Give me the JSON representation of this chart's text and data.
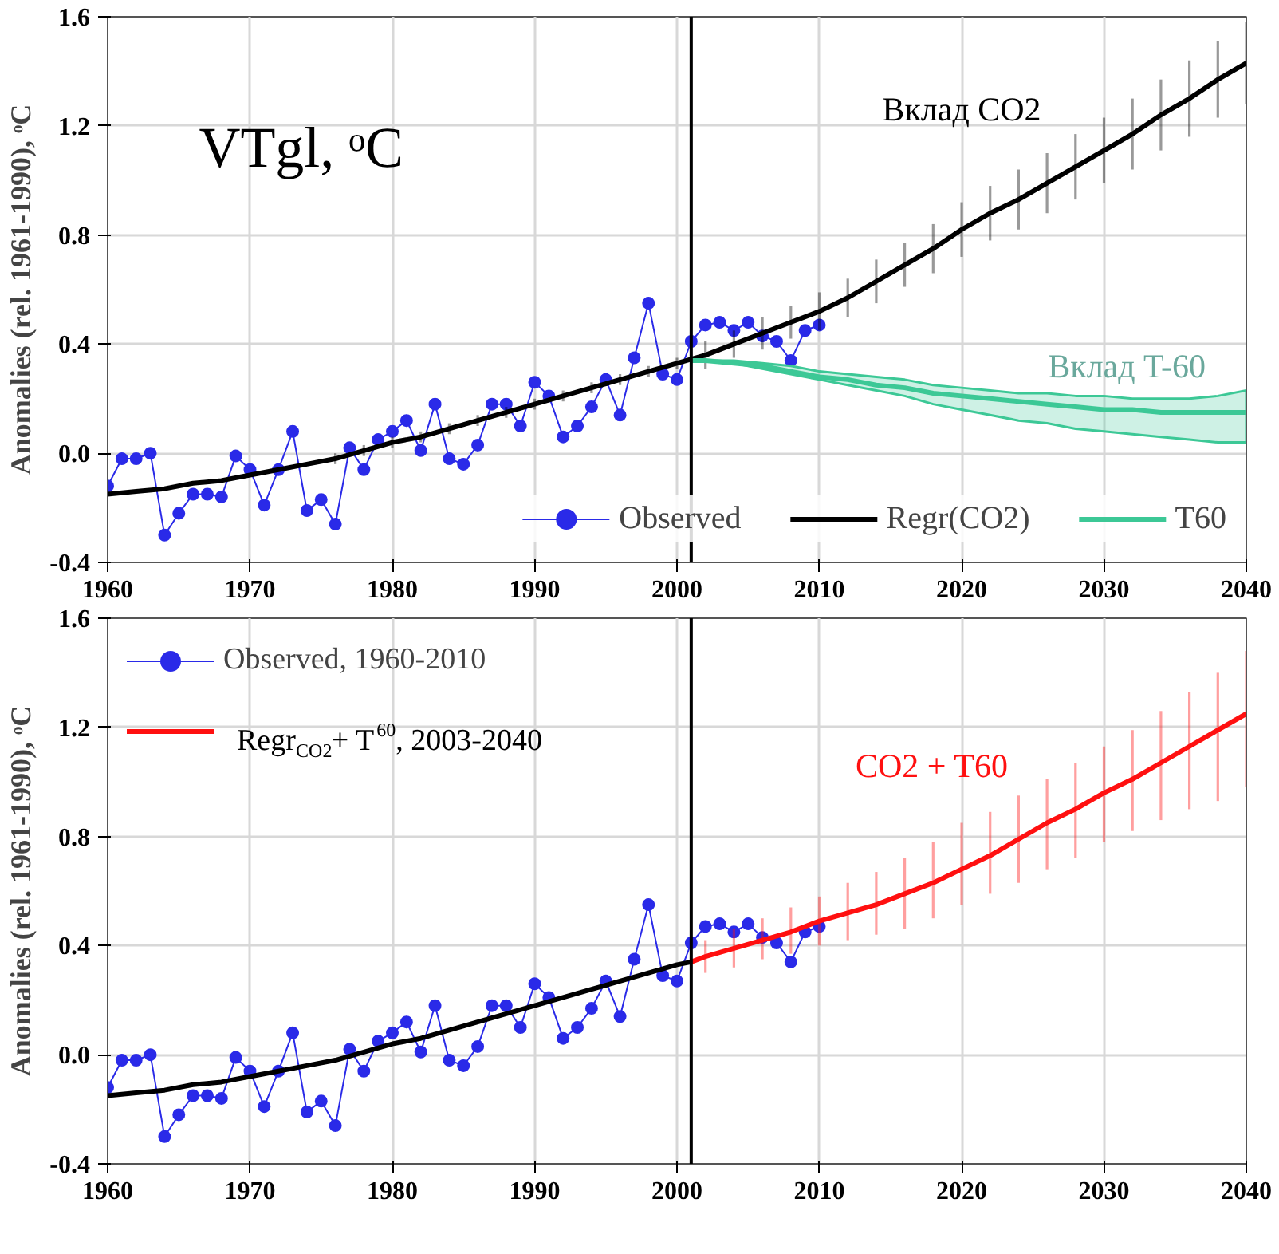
{
  "chart_data": [
    {
      "type": "line",
      "xlim": [
        1960,
        2040
      ],
      "ylim": [
        -0.4,
        1.6
      ],
      "xticks": [
        1960,
        1970,
        1980,
        1990,
        2000,
        2010,
        2020,
        2030,
        2040
      ],
      "yticks": [
        -0.4,
        {
          "value": 0,
          "label": "0.0"
        },
        0.4,
        0.8,
        1.2,
        1.6
      ],
      "ylabel": "Anomalies (rel. 1961-1990), ᵒC",
      "grid": true,
      "legend": "bottom",
      "series": [
        {
          "name": "Observed",
          "color": "#2a2ae8",
          "marker": "circle",
          "x": [
            1960,
            1961,
            1962,
            1963,
            1964,
            1965,
            1966,
            1967,
            1968,
            1969,
            1970,
            1971,
            1972,
            1973,
            1974,
            1975,
            1976,
            1977,
            1978,
            1979,
            1980,
            1981,
            1982,
            1983,
            1984,
            1985,
            1986,
            1987,
            1988,
            1989,
            1990,
            1991,
            1992,
            1993,
            1994,
            1995,
            1996,
            1997,
            1998,
            1999,
            2000,
            2001,
            2002,
            2003,
            2004,
            2005,
            2006,
            2007,
            2008,
            2009,
            2010
          ],
          "values": [
            -0.12,
            -0.02,
            -0.02,
            0.0,
            -0.3,
            -0.22,
            -0.15,
            -0.15,
            -0.16,
            -0.01,
            -0.06,
            -0.19,
            -0.06,
            0.08,
            -0.21,
            -0.17,
            -0.26,
            0.02,
            -0.06,
            0.05,
            0.08,
            0.12,
            0.01,
            0.18,
            -0.02,
            -0.04,
            0.03,
            0.18,
            0.18,
            0.1,
            0.26,
            0.21,
            0.06,
            0.1,
            0.17,
            0.27,
            0.14,
            0.35,
            0.55,
            0.29,
            0.27,
            0.41,
            0.47,
            0.48,
            0.45,
            0.48,
            0.43,
            0.41,
            0.34,
            0.45,
            0.47
          ]
        },
        {
          "name": "Regr(CO2)",
          "color": "#000000",
          "x": [
            1960,
            1962,
            1964,
            1966,
            1968,
            1970,
            1972,
            1974,
            1976,
            1978,
            1980,
            1982,
            1984,
            1986,
            1988,
            1990,
            1992,
            1994,
            1996,
            1998,
            2000,
            2002,
            2004,
            2006,
            2008,
            2010,
            2012,
            2014,
            2016,
            2018,
            2020,
            2022,
            2024,
            2026,
            2028,
            2030,
            2032,
            2034,
            2036,
            2038,
            2040
          ],
          "values": [
            -0.15,
            -0.14,
            -0.13,
            -0.11,
            -0.1,
            -0.08,
            -0.06,
            -0.04,
            -0.02,
            0.01,
            0.04,
            0.06,
            0.09,
            0.12,
            0.15,
            0.18,
            0.21,
            0.24,
            0.27,
            0.3,
            0.33,
            0.36,
            0.4,
            0.44,
            0.48,
            0.52,
            0.57,
            0.63,
            0.69,
            0.75,
            0.82,
            0.88,
            0.93,
            0.99,
            1.05,
            1.11,
            1.17,
            1.24,
            1.3,
            1.37,
            1.43
          ],
          "errors": [
            null,
            null,
            null,
            null,
            null,
            null,
            null,
            null,
            [
              -0.04,
              0.0
            ],
            [
              -0.01,
              0.03
            ],
            [
              0.02,
              0.06
            ],
            [
              0.04,
              0.08
            ],
            [
              0.07,
              0.11
            ],
            [
              0.1,
              0.14
            ],
            [
              0.13,
              0.17
            ],
            [
              0.16,
              0.2
            ],
            [
              0.19,
              0.23
            ],
            [
              0.22,
              0.26
            ],
            [
              0.25,
              0.29
            ],
            [
              0.28,
              0.32
            ],
            [
              0.31,
              0.35
            ],
            [
              0.31,
              0.41
            ],
            [
              0.35,
              0.45
            ],
            [
              0.38,
              0.5
            ],
            [
              0.42,
              0.54
            ],
            [
              0.45,
              0.59
            ],
            [
              0.5,
              0.64
            ],
            [
              0.55,
              0.71
            ],
            [
              0.61,
              0.77
            ],
            [
              0.66,
              0.84
            ],
            [
              0.72,
              0.92
            ],
            [
              0.78,
              0.98
            ],
            [
              0.82,
              1.04
            ],
            [
              0.88,
              1.1
            ],
            [
              0.93,
              1.17
            ],
            [
              0.99,
              1.23
            ],
            [
              1.04,
              1.3
            ],
            [
              1.11,
              1.37
            ],
            [
              1.16,
              1.44
            ],
            [
              1.23,
              1.51
            ],
            [
              1.28,
              1.58
            ]
          ]
        },
        {
          "name": "T60",
          "color": "#3cc896",
          "x": [
            2001,
            2002,
            2004,
            2006,
            2008,
            2010,
            2012,
            2014,
            2016,
            2018,
            2020,
            2022,
            2024,
            2026,
            2028,
            2030,
            2032,
            2034,
            2036,
            2038,
            2040
          ],
          "values": [
            0.34,
            0.34,
            0.33,
            0.32,
            0.3,
            0.28,
            0.27,
            0.25,
            0.24,
            0.22,
            0.21,
            0.2,
            0.19,
            0.18,
            0.17,
            0.16,
            0.16,
            0.15,
            0.15,
            0.15,
            0.15
          ],
          "lower": [
            0.34,
            0.34,
            0.33,
            0.31,
            0.29,
            0.27,
            0.25,
            0.23,
            0.21,
            0.18,
            0.16,
            0.14,
            0.12,
            0.11,
            0.09,
            0.08,
            0.07,
            0.06,
            0.05,
            0.04,
            0.04
          ],
          "upper": [
            0.34,
            0.34,
            0.34,
            0.33,
            0.32,
            0.3,
            0.29,
            0.28,
            0.27,
            0.25,
            0.24,
            0.23,
            0.22,
            0.22,
            0.21,
            0.21,
            0.2,
            0.2,
            0.2,
            0.21,
            0.23
          ]
        }
      ],
      "ref_lines": [
        {
          "axis": "x",
          "value": 2001
        }
      ],
      "annotations": [
        "VTgl, ᵒC",
        "Вклад CO2",
        "Вклад T-60"
      ]
    },
    {
      "type": "line",
      "xlim": [
        1960,
        2040
      ],
      "ylim": [
        -0.4,
        1.6
      ],
      "xticks": [
        1960,
        1970,
        1980,
        1990,
        2000,
        2010,
        2020,
        2030,
        2040
      ],
      "yticks": [
        -0.4,
        {
          "value": 0,
          "label": "0.0"
        },
        0.4,
        0.8,
        1.2,
        1.6
      ],
      "ylabel": "Anomalies (rel. 1961-1990), ᵒC",
      "grid": true,
      "legend": "top left",
      "series": [
        {
          "name": "Observed, 1960-2010",
          "color": "#2a2ae8",
          "marker": "circle",
          "x": [
            1960,
            1961,
            1962,
            1963,
            1964,
            1965,
            1966,
            1967,
            1968,
            1969,
            1970,
            1971,
            1972,
            1973,
            1974,
            1975,
            1976,
            1977,
            1978,
            1979,
            1980,
            1981,
            1982,
            1983,
            1984,
            1985,
            1986,
            1987,
            1988,
            1989,
            1990,
            1991,
            1992,
            1993,
            1994,
            1995,
            1996,
            1997,
            1998,
            1999,
            2000,
            2001,
            2002,
            2003,
            2004,
            2005,
            2006,
            2007,
            2008,
            2009,
            2010
          ],
          "values": [
            -0.12,
            -0.02,
            -0.02,
            0.0,
            -0.3,
            -0.22,
            -0.15,
            -0.15,
            -0.16,
            -0.01,
            -0.06,
            -0.19,
            -0.06,
            0.08,
            -0.21,
            -0.17,
            -0.26,
            0.02,
            -0.06,
            0.05,
            0.08,
            0.12,
            0.01,
            0.18,
            -0.02,
            -0.04,
            0.03,
            0.18,
            0.18,
            0.1,
            0.26,
            0.21,
            0.06,
            0.1,
            0.17,
            0.27,
            0.14,
            0.35,
            0.55,
            0.29,
            0.27,
            0.41,
            0.47,
            0.48,
            0.45,
            0.48,
            0.43,
            0.41,
            0.34,
            0.45,
            0.47
          ]
        },
        {
          "color": "#000000",
          "x": [
            1960,
            1962,
            1964,
            1966,
            1968,
            1970,
            1972,
            1974,
            1976,
            1978,
            1980,
            1982,
            1984,
            1986,
            1988,
            1990,
            1992,
            1994,
            1996,
            1998,
            2000,
            2001
          ],
          "values": [
            -0.15,
            -0.14,
            -0.13,
            -0.11,
            -0.1,
            -0.08,
            -0.06,
            -0.04,
            -0.02,
            0.01,
            0.04,
            0.06,
            0.09,
            0.12,
            0.15,
            0.18,
            0.21,
            0.24,
            0.27,
            0.3,
            0.33,
            0.34
          ]
        },
        {
          "name": "Regr$_{CO2}$+ T$^{60}$, 2003-2040",
          "color": "#ff1010",
          "x": [
            2001,
            2002,
            2004,
            2006,
            2008,
            2010,
            2012,
            2014,
            2016,
            2018,
            2020,
            2022,
            2024,
            2026,
            2028,
            2030,
            2032,
            2034,
            2036,
            2038,
            2040
          ],
          "values": [
            0.34,
            0.36,
            0.39,
            0.42,
            0.45,
            0.49,
            0.52,
            0.55,
            0.59,
            0.63,
            0.68,
            0.73,
            0.79,
            0.85,
            0.9,
            0.96,
            1.01,
            1.07,
            1.13,
            1.19,
            1.25
          ],
          "errors": [
            null,
            [
              0.3,
              0.42
            ],
            [
              0.32,
              0.46
            ],
            [
              0.35,
              0.5
            ],
            [
              0.37,
              0.54
            ],
            [
              0.4,
              0.58
            ],
            [
              0.42,
              0.63
            ],
            [
              0.44,
              0.67
            ],
            [
              0.46,
              0.72
            ],
            [
              0.5,
              0.78
            ],
            [
              0.55,
              0.85
            ],
            [
              0.59,
              0.89
            ],
            [
              0.63,
              0.95
            ],
            [
              0.68,
              1.01
            ],
            [
              0.72,
              1.07
            ],
            [
              0.78,
              1.13
            ],
            [
              0.82,
              1.19
            ],
            [
              0.86,
              1.26
            ],
            [
              0.9,
              1.33
            ],
            [
              0.93,
              1.4
            ],
            [
              0.98,
              1.48
            ]
          ]
        }
      ],
      "ref_lines": [
        {
          "axis": "x",
          "value": 2001
        }
      ],
      "annotations": [
        "CO2 + T60"
      ]
    }
  ]
}
